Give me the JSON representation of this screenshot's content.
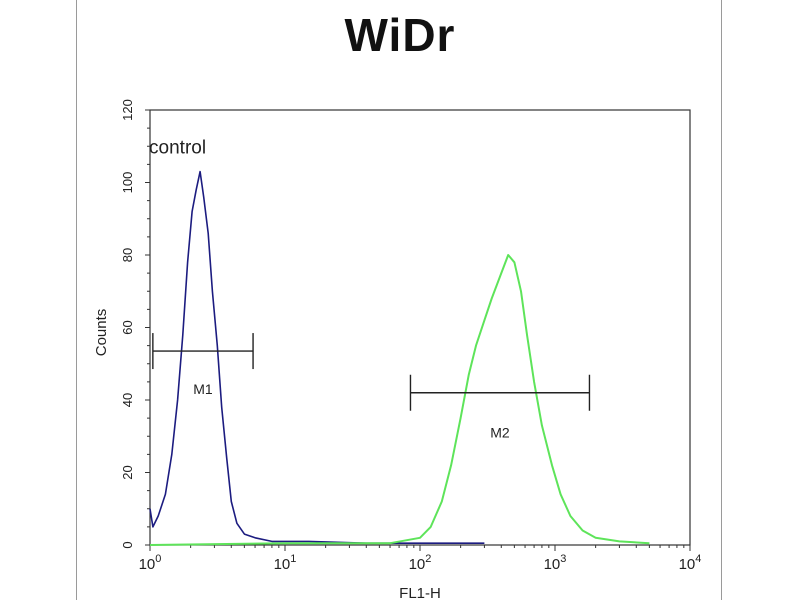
{
  "chart_data": {
    "type": "line",
    "title": "WiDr",
    "xlabel": "FL1-H",
    "ylabel": "Counts",
    "x_scale": "log",
    "xlim": [
      1,
      10000
    ],
    "ylim": [
      0,
      120
    ],
    "x_ticks": [
      {
        "base": "10",
        "exp": "0",
        "value": 1
      },
      {
        "base": "10",
        "exp": "1",
        "value": 10
      },
      {
        "base": "10",
        "exp": "2",
        "value": 100
      },
      {
        "base": "10",
        "exp": "3",
        "value": 1000
      },
      {
        "base": "10",
        "exp": "4",
        "value": 10000
      }
    ],
    "y_ticks": [
      "0",
      "20",
      "40",
      "60",
      "80",
      "100",
      "120"
    ],
    "grid": false,
    "series": [
      {
        "color": "#1c1c80",
        "points": [
          [
            1.0,
            10
          ],
          [
            1.05,
            5
          ],
          [
            1.15,
            8
          ],
          [
            1.3,
            14
          ],
          [
            1.45,
            25
          ],
          [
            1.6,
            40
          ],
          [
            1.75,
            58
          ],
          [
            1.9,
            78
          ],
          [
            2.05,
            92
          ],
          [
            2.2,
            98
          ],
          [
            2.35,
            103
          ],
          [
            2.5,
            96
          ],
          [
            2.7,
            86
          ],
          [
            2.9,
            70
          ],
          [
            3.15,
            55
          ],
          [
            3.4,
            38
          ],
          [
            3.7,
            24
          ],
          [
            4.0,
            12
          ],
          [
            4.4,
            6
          ],
          [
            5.0,
            3
          ],
          [
            6.0,
            2
          ],
          [
            8.0,
            1
          ],
          [
            15,
            1
          ],
          [
            40,
            0.5
          ],
          [
            100,
            0.5
          ],
          [
            300,
            0.5
          ]
        ]
      },
      {
        "color": "#5ee45a",
        "points": [
          [
            1.0,
            0
          ],
          [
            10,
            0.5
          ],
          [
            60,
            0.5
          ],
          [
            100,
            2
          ],
          [
            120,
            5
          ],
          [
            145,
            12
          ],
          [
            170,
            22
          ],
          [
            200,
            35
          ],
          [
            230,
            47
          ],
          [
            260,
            55
          ],
          [
            300,
            62
          ],
          [
            340,
            68
          ],
          [
            400,
            75
          ],
          [
            450,
            80
          ],
          [
            500,
            78
          ],
          [
            560,
            70
          ],
          [
            620,
            58
          ],
          [
            700,
            45
          ],
          [
            800,
            33
          ],
          [
            950,
            22
          ],
          [
            1100,
            14
          ],
          [
            1300,
            8
          ],
          [
            1600,
            4
          ],
          [
            2000,
            2
          ],
          [
            3000,
            1
          ],
          [
            5000,
            0.5
          ]
        ]
      }
    ],
    "annotations": [
      {
        "text": "control",
        "x": 1.6,
        "y": 108
      }
    ],
    "markers": [
      {
        "label": "M1",
        "x_start": 1.05,
        "x_end": 5.8,
        "y": 53.5,
        "label_y": 43
      },
      {
        "label": "M2",
        "x_start": 85,
        "x_end": 1800,
        "y": 42,
        "label_y": 31
      }
    ]
  }
}
